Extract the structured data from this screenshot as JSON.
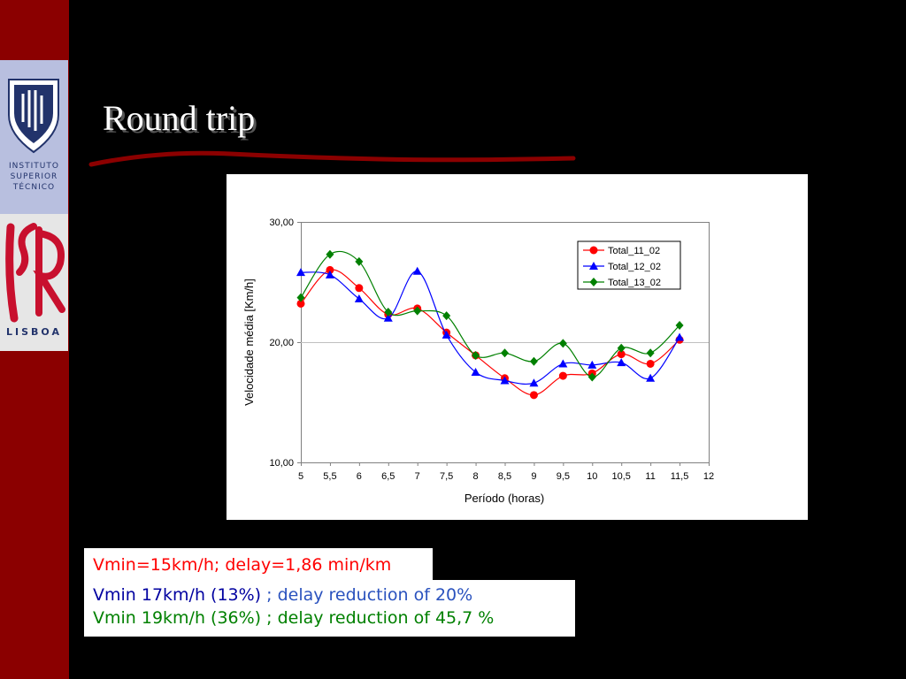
{
  "logos": {
    "ist_lines": [
      "INSTITUTO",
      "SUPERIOR",
      "TÉCNICO"
    ],
    "isr_text": "LISBOA",
    "brand_colors": {
      "sidebar": "#8b0000",
      "title_underline": "#8b0000"
    }
  },
  "slide_title": "Round trip",
  "chart_data": {
    "type": "line",
    "xlabel": "Período (horas)",
    "ylabel": "Velocidade média [Km/h]",
    "x": [
      5,
      5.5,
      6,
      6.5,
      7,
      7.5,
      8,
      8.5,
      9,
      9.5,
      10,
      10.5,
      11,
      11.5
    ],
    "x_ticks": [
      "5",
      "5,5",
      "6",
      "6,5",
      "7",
      "7,5",
      "8",
      "8,5",
      "9",
      "9,5",
      "10",
      "10,5",
      "11",
      "11,5",
      "12"
    ],
    "y_ticks": [
      "10,00",
      "20,00",
      "30,00"
    ],
    "xlim": [
      5,
      12
    ],
    "ylim": [
      10,
      30
    ],
    "grid": "horizontal at 20",
    "legend_position": "top-right",
    "series": [
      {
        "name": "Total_11_02",
        "color": "#ff0000",
        "marker": "circle",
        "values": [
          23.2,
          26.0,
          24.5,
          22.3,
          22.8,
          20.8,
          18.9,
          17.0,
          15.6,
          17.2,
          17.4,
          19.0,
          18.2,
          20.2
        ]
      },
      {
        "name": "Total_12_02",
        "color": "#0000ff",
        "marker": "triangle",
        "values": [
          25.8,
          25.6,
          23.6,
          22.0,
          25.9,
          20.6,
          17.5,
          16.8,
          16.6,
          18.2,
          18.1,
          18.3,
          17.0,
          20.4
        ]
      },
      {
        "name": "Total_13_02",
        "color": "#008000",
        "marker": "diamond",
        "values": [
          23.7,
          27.3,
          26.7,
          22.5,
          22.6,
          22.2,
          18.9,
          19.1,
          18.4,
          19.9,
          17.1,
          19.5,
          19.1,
          21.4
        ]
      }
    ]
  },
  "notes": [
    {
      "segments": [
        {
          "text": "Vmin=15km/h; delay=1,86 min/km",
          "color": "#ff0000"
        }
      ]
    },
    {
      "segments": [
        {
          "text": "Vmin 17km/h (13%)",
          "color": "#0000a0"
        },
        {
          "text": " ; delay reduction of 20%",
          "color": "#2a52be"
        }
      ]
    },
    {
      "segments": [
        {
          "text": "Vmin 19km/h (36%) ; delay reduction of 45,7 %",
          "color": "#008000"
        }
      ]
    }
  ]
}
